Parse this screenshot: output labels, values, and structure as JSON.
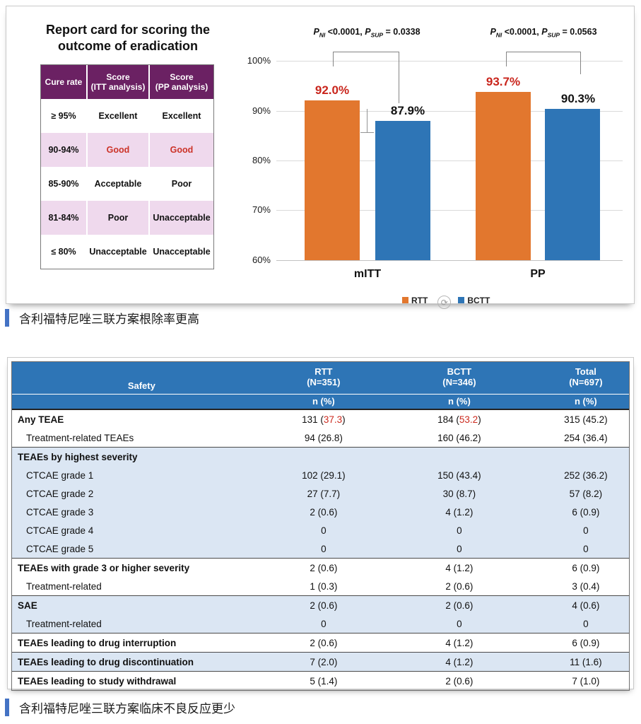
{
  "report_card": {
    "title_line1": "Report card for scoring the",
    "title_line2": "outcome of eradication",
    "header": {
      "col1": "Cure rate",
      "col2_line1": "Score",
      "col2_line2": "(ITT analysis)",
      "col3_line1": "Score",
      "col3_line2": "(PP analysis)"
    },
    "rows": [
      {
        "rate": "≥ 95%",
        "itt": "Excellent",
        "pp": "Excellent"
      },
      {
        "rate": "90-94%",
        "itt": "Good",
        "pp": "Good"
      },
      {
        "rate": "85-90%",
        "itt": "Acceptable",
        "pp": "Poor"
      },
      {
        "rate": "81-84%",
        "itt": "Poor",
        "pp": "Unacceptable"
      },
      {
        "rate": "≤ 80%",
        "itt": "Unacceptable",
        "pp": "Unacceptable"
      }
    ],
    "colors": {
      "header_bg": "#6B2163",
      "band_bg": "#EFD9ED",
      "highlight_red": "#CC3328"
    }
  },
  "chart_data": {
    "type": "bar",
    "categories": [
      "mITT",
      "PP"
    ],
    "series": [
      {
        "name": "RTT",
        "color": "#E2772E",
        "values": [
          92.0,
          93.7
        ],
        "labels": [
          "92.0%",
          "93.7%"
        ],
        "label_color": "#C9251C"
      },
      {
        "name": "BCTT",
        "color": "#2E75B6",
        "values": [
          87.9,
          90.3
        ],
        "labels": [
          "87.9%",
          "90.3%"
        ],
        "label_color": "#111111"
      }
    ],
    "ylim": [
      60,
      100
    ],
    "yticks": [
      {
        "v": 100,
        "label": "100%"
      },
      {
        "v": 90,
        "label": "90%"
      },
      {
        "v": 80,
        "label": "80%"
      },
      {
        "v": 70,
        "label": "70%"
      },
      {
        "v": 60,
        "label": "60%"
      }
    ],
    "grid": true,
    "legend_position": "bottom",
    "annotations": [
      {
        "text": "P_NI <0.0001, P_SUP = 0.0338",
        "p1": "P",
        "s1": "NI",
        "v1": " <0.0001, ",
        "p2": "P",
        "s2": "SUP",
        "v2": " = 0.0338"
      },
      {
        "text": "P_NI <0.0001, P_SUP = 0.0563",
        "p1": "P",
        "s1": "NI",
        "v1": " <0.0001, ",
        "p2": "P",
        "s2": "SUP",
        "v2": " = 0.0563"
      }
    ]
  },
  "icons": {
    "rotate_glyph": "⟳"
  },
  "caption1": {
    "text": "含利福特尼唑三联方案根除率更高",
    "accent": "#4472C4"
  },
  "caption2": {
    "text": "含利福特尼唑三联方案临床不良反应更少",
    "accent": "#4472C4"
  },
  "safety_table": {
    "header": {
      "col1": "Safety",
      "cols": [
        {
          "name": "RTT",
          "n": "(N=351)",
          "unit": "n (%)"
        },
        {
          "name": "BCTT",
          "n": "(N=346)",
          "unit": "n (%)"
        },
        {
          "name": "Total",
          "n": "(N=697)",
          "unit": "n (%)"
        }
      ],
      "bg": "#2E75B6"
    },
    "colors": {
      "zebra_bg": "#DBE6F3",
      "highlight_red": "#CC2A1E"
    },
    "rows": [
      {
        "label": "Any TEAE",
        "rtt_pre": "131 (",
        "rtt_red": "37.3",
        "rtt_post": ")",
        "bctt_pre": "184 (",
        "bctt_red": "53.2",
        "bctt_post": ")",
        "total": "315 (45.2)"
      },
      {
        "label": "Treatment-related TEAEs",
        "rtt": "94 (26.8)",
        "bctt": "160 (46.2)",
        "total": "254 (36.4)"
      },
      {
        "label": "TEAEs by highest severity",
        "rtt": "",
        "bctt": "",
        "total": ""
      },
      {
        "label": "CTCAE grade 1",
        "rtt": "102 (29.1)",
        "bctt": "150 (43.4)",
        "total": "252 (36.2)"
      },
      {
        "label": "CTCAE grade 2",
        "rtt": "27 (7.7)",
        "bctt": "30 (8.7)",
        "total": "57 (8.2)"
      },
      {
        "label": "CTCAE grade 3",
        "rtt": "2 (0.6)",
        "bctt": "4 (1.2)",
        "total": "6 (0.9)"
      },
      {
        "label": "CTCAE grade 4",
        "rtt": "0",
        "bctt": "0",
        "total": "0"
      },
      {
        "label": "CTCAE grade 5",
        "rtt": "0",
        "bctt": "0",
        "total": "0"
      },
      {
        "label": "TEAEs with grade 3 or higher severity",
        "rtt": "2 (0.6)",
        "bctt": "4 (1.2)",
        "total": "6 (0.9)"
      },
      {
        "label": "Treatment-related",
        "rtt": "1 (0.3)",
        "bctt": "2 (0.6)",
        "total": "3 (0.4)"
      },
      {
        "label": "SAE",
        "rtt": "2 (0.6)",
        "bctt": "2 (0.6)",
        "total": "4 (0.6)"
      },
      {
        "label": "Treatment-related",
        "rtt": "0",
        "bctt": "0",
        "total": "0"
      },
      {
        "label": "TEAEs leading to drug interruption",
        "rtt": "2 (0.6)",
        "bctt": "4 (1.2)",
        "total": "6 (0.9)"
      },
      {
        "label": "TEAEs leading to drug discontinuation",
        "rtt": "7 (2.0)",
        "bctt": "4 (1.2)",
        "total": "11 (1.6)"
      },
      {
        "label": "TEAEs leading to study withdrawal",
        "rtt": "5 (1.4)",
        "bctt": "2 (0.6)",
        "total": "7 (1.0)"
      }
    ]
  }
}
